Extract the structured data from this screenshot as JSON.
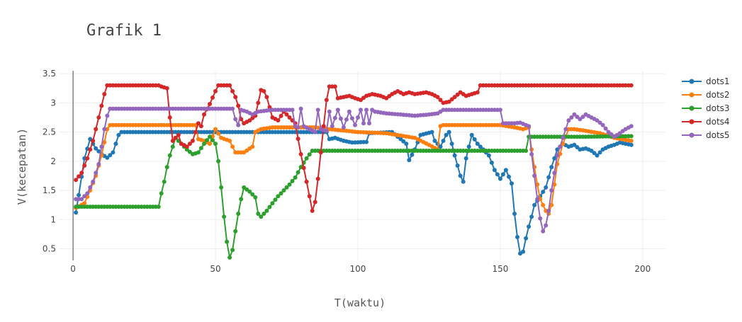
{
  "chart_data": {
    "type": "line",
    "title": "Grafik 1",
    "xlabel": "T(waktu)",
    "ylabel": "V(kecepatan)",
    "xlim": [
      -5,
      208
    ],
    "ylim": [
      0.3,
      3.55
    ],
    "xticks": [
      0,
      50,
      100,
      150,
      200
    ],
    "yticks": [
      0.5,
      1,
      1.5,
      2,
      2.5,
      3,
      3.5
    ],
    "ytick_labels": [
      "0.5",
      "1",
      "1.5",
      "2",
      "2.5",
      "3",
      "3.5"
    ],
    "grid": true,
    "legend_position": "top-right",
    "series": [
      {
        "name": "dots1",
        "color": "#1f77b4",
        "points": [
          [
            1,
            1.12
          ],
          [
            2,
            1.42
          ],
          [
            4,
            2.05
          ],
          [
            6,
            2.38
          ],
          [
            8,
            2.22
          ],
          [
            10,
            2.12
          ],
          [
            12,
            2.06
          ],
          [
            14,
            2.15
          ],
          [
            16,
            2.45
          ],
          [
            17,
            2.5
          ],
          [
            30,
            2.5
          ],
          [
            60,
            2.5
          ],
          [
            89,
            2.5
          ],
          [
            90,
            2.38
          ],
          [
            92,
            2.4
          ],
          [
            95,
            2.35
          ],
          [
            98,
            2.32
          ],
          [
            103,
            2.33
          ],
          [
            104,
            2.48
          ],
          [
            112,
            2.5
          ],
          [
            117,
            2.3
          ],
          [
            118,
            2.02
          ],
          [
            120,
            2.2
          ],
          [
            122,
            2.45
          ],
          [
            126,
            2.5
          ],
          [
            127,
            2.35
          ],
          [
            129,
            2.25
          ],
          [
            131,
            2.45
          ],
          [
            132,
            2.5
          ],
          [
            134,
            2.1
          ],
          [
            136,
            1.75
          ],
          [
            137,
            1.65
          ],
          [
            138,
            2.05
          ],
          [
            140,
            2.45
          ],
          [
            142,
            2.3
          ],
          [
            144,
            2.2
          ],
          [
            146,
            2.1
          ],
          [
            148,
            1.85
          ],
          [
            150,
            1.7
          ],
          [
            152,
            1.85
          ],
          [
            154,
            1.62
          ],
          [
            155,
            1.1
          ],
          [
            156,
            0.7
          ],
          [
            157,
            0.42
          ],
          [
            158,
            0.45
          ],
          [
            159,
            0.68
          ],
          [
            160,
            0.88
          ],
          [
            161,
            1.05
          ],
          [
            162,
            1.25
          ],
          [
            164,
            1.4
          ],
          [
            166,
            1.55
          ],
          [
            168,
            1.9
          ],
          [
            170,
            2.2
          ],
          [
            172,
            2.3
          ],
          [
            174,
            2.25
          ],
          [
            176,
            2.28
          ],
          [
            178,
            2.2
          ],
          [
            180,
            2.22
          ],
          [
            182,
            2.18
          ],
          [
            184,
            2.1
          ],
          [
            186,
            2.2
          ],
          [
            188,
            2.25
          ],
          [
            190,
            2.28
          ],
          [
            192,
            2.32
          ],
          [
            194,
            2.3
          ],
          [
            196,
            2.28
          ]
        ]
      },
      {
        "name": "dots2",
        "color": "#ff7f0e",
        "points": [
          [
            1,
            1.2
          ],
          [
            4,
            1.28
          ],
          [
            6,
            1.5
          ],
          [
            8,
            1.75
          ],
          [
            10,
            2.1
          ],
          [
            12,
            2.55
          ],
          [
            13,
            2.62
          ],
          [
            20,
            2.62
          ],
          [
            30,
            2.62
          ],
          [
            43,
            2.62
          ],
          [
            44,
            2.38
          ],
          [
            46,
            2.35
          ],
          [
            48,
            2.3
          ],
          [
            50,
            2.55
          ],
          [
            52,
            2.4
          ],
          [
            55,
            2.35
          ],
          [
            56,
            2.25
          ],
          [
            57,
            2.15
          ],
          [
            60,
            2.15
          ],
          [
            63,
            2.25
          ],
          [
            64,
            2.5
          ],
          [
            66,
            2.55
          ],
          [
            70,
            2.58
          ],
          [
            80,
            2.58
          ],
          [
            85,
            2.58
          ],
          [
            90,
            2.55
          ],
          [
            100,
            2.5
          ],
          [
            110,
            2.48
          ],
          [
            120,
            2.4
          ],
          [
            125,
            2.28
          ],
          [
            128,
            2.2
          ],
          [
            129,
            2.6
          ],
          [
            130,
            2.62
          ],
          [
            150,
            2.62
          ],
          [
            155,
            2.58
          ],
          [
            158,
            2.55
          ],
          [
            160,
            2.58
          ],
          [
            161,
            2.2
          ],
          [
            162,
            1.9
          ],
          [
            163,
            1.6
          ],
          [
            164,
            1.35
          ],
          [
            166,
            1.15
          ],
          [
            167,
            1.1
          ],
          [
            168,
            1.25
          ],
          [
            169,
            1.6
          ],
          [
            170,
            1.95
          ],
          [
            172,
            2.3
          ],
          [
            174,
            2.55
          ],
          [
            176,
            2.55
          ],
          [
            180,
            2.52
          ],
          [
            185,
            2.48
          ],
          [
            190,
            2.4
          ],
          [
            196,
            2.35
          ]
        ]
      },
      {
        "name": "dots3",
        "color": "#2ca02c",
        "points": [
          [
            1,
            1.22
          ],
          [
            10,
            1.22
          ],
          [
            20,
            1.22
          ],
          [
            30,
            1.22
          ],
          [
            31,
            1.45
          ],
          [
            32,
            1.65
          ],
          [
            33,
            1.9
          ],
          [
            34,
            2.1
          ],
          [
            36,
            2.4
          ],
          [
            38,
            2.3
          ],
          [
            40,
            2.2
          ],
          [
            42,
            2.12
          ],
          [
            44,
            2.15
          ],
          [
            46,
            2.3
          ],
          [
            48,
            2.42
          ],
          [
            50,
            2.3
          ],
          [
            51,
            2.0
          ],
          [
            52,
            1.55
          ],
          [
            53,
            1.05
          ],
          [
            54,
            0.62
          ],
          [
            55,
            0.35
          ],
          [
            56,
            0.48
          ],
          [
            57,
            0.8
          ],
          [
            58,
            1.1
          ],
          [
            59,
            1.35
          ],
          [
            60,
            1.55
          ],
          [
            62,
            1.48
          ],
          [
            64,
            1.38
          ],
          [
            65,
            1.1
          ],
          [
            66,
            1.05
          ],
          [
            68,
            1.15
          ],
          [
            70,
            1.28
          ],
          [
            72,
            1.4
          ],
          [
            74,
            1.5
          ],
          [
            76,
            1.6
          ],
          [
            78,
            1.72
          ],
          [
            80,
            1.9
          ],
          [
            82,
            2.05
          ],
          [
            84,
            2.18
          ],
          [
            90,
            2.18
          ],
          [
            100,
            2.18
          ],
          [
            120,
            2.18
          ],
          [
            140,
            2.18
          ],
          [
            159,
            2.18
          ],
          [
            160,
            2.42
          ],
          [
            170,
            2.42
          ],
          [
            180,
            2.42
          ],
          [
            196,
            2.43
          ]
        ]
      },
      {
        "name": "dots4",
        "color": "#d62728",
        "points": [
          [
            1,
            1.68
          ],
          [
            3,
            1.8
          ],
          [
            5,
            2.05
          ],
          [
            7,
            2.35
          ],
          [
            9,
            2.75
          ],
          [
            11,
            3.15
          ],
          [
            12,
            3.3
          ],
          [
            20,
            3.3
          ],
          [
            30,
            3.3
          ],
          [
            31,
            3.28
          ],
          [
            33,
            3.25
          ],
          [
            34,
            2.75
          ],
          [
            35,
            2.35
          ],
          [
            37,
            2.45
          ],
          [
            38,
            2.3
          ],
          [
            40,
            2.25
          ],
          [
            42,
            2.35
          ],
          [
            44,
            2.65
          ],
          [
            45,
            2.6
          ],
          [
            46,
            2.8
          ],
          [
            48,
            2.98
          ],
          [
            50,
            3.2
          ],
          [
            51,
            3.3
          ],
          [
            55,
            3.3
          ],
          [
            56,
            3.2
          ],
          [
            57,
            3.1
          ],
          [
            58,
            2.95
          ],
          [
            59,
            2.72
          ],
          [
            60,
            2.65
          ],
          [
            62,
            2.7
          ],
          [
            64,
            2.78
          ],
          [
            66,
            3.22
          ],
          [
            67,
            3.2
          ],
          [
            68,
            3.1
          ],
          [
            70,
            2.75
          ],
          [
            72,
            2.7
          ],
          [
            74,
            2.85
          ],
          [
            76,
            2.75
          ],
          [
            78,
            2.65
          ],
          [
            80,
            2.12
          ],
          [
            82,
            1.65
          ],
          [
            83,
            1.4
          ],
          [
            84,
            1.15
          ],
          [
            85,
            1.3
          ],
          [
            86,
            1.7
          ],
          [
            87,
            2.15
          ],
          [
            88,
            2.6
          ],
          [
            89,
            3.05
          ],
          [
            90,
            3.28
          ],
          [
            92,
            3.28
          ],
          [
            93,
            3.08
          ],
          [
            95,
            3.1
          ],
          [
            97,
            3.12
          ],
          [
            99,
            3.08
          ],
          [
            101,
            3.05
          ],
          [
            103,
            3.12
          ],
          [
            105,
            3.15
          ],
          [
            108,
            3.12
          ],
          [
            110,
            3.08
          ],
          [
            112,
            3.15
          ],
          [
            114,
            3.2
          ],
          [
            116,
            3.15
          ],
          [
            118,
            3.18
          ],
          [
            120,
            3.15
          ],
          [
            124,
            3.18
          ],
          [
            126,
            3.15
          ],
          [
            128,
            3.1
          ],
          [
            130,
            3.0
          ],
          [
            132,
            3.02
          ],
          [
            134,
            3.1
          ],
          [
            136,
            3.18
          ],
          [
            138,
            3.12
          ],
          [
            140,
            3.15
          ],
          [
            142,
            3.18
          ],
          [
            143,
            3.3
          ],
          [
            150,
            3.3
          ],
          [
            160,
            3.3
          ],
          [
            170,
            3.3
          ],
          [
            180,
            3.3
          ],
          [
            196,
            3.3
          ]
        ]
      },
      {
        "name": "dots5",
        "color": "#9467bd",
        "points": [
          [
            1,
            1.35
          ],
          [
            3,
            1.35
          ],
          [
            5,
            1.45
          ],
          [
            7,
            1.65
          ],
          [
            9,
            1.95
          ],
          [
            11,
            2.55
          ],
          [
            12,
            2.78
          ],
          [
            13,
            2.9
          ],
          [
            20,
            2.9
          ],
          [
            30,
            2.9
          ],
          [
            40,
            2.9
          ],
          [
            50,
            2.9
          ],
          [
            56,
            2.9
          ],
          [
            57,
            2.72
          ],
          [
            58,
            2.62
          ],
          [
            59,
            2.88
          ],
          [
            61,
            2.85
          ],
          [
            63,
            2.8
          ],
          [
            65,
            2.85
          ],
          [
            70,
            2.88
          ],
          [
            77,
            2.88
          ],
          [
            78,
            2.6
          ],
          [
            79,
            2.58
          ],
          [
            80,
            2.9
          ],
          [
            81,
            2.6
          ],
          [
            83,
            2.55
          ],
          [
            85,
            2.5
          ],
          [
            86,
            2.88
          ],
          [
            87,
            2.55
          ],
          [
            89,
            2.52
          ],
          [
            90,
            2.85
          ],
          [
            91,
            2.6
          ],
          [
            93,
            2.88
          ],
          [
            95,
            2.58
          ],
          [
            97,
            2.85
          ],
          [
            99,
            2.62
          ],
          [
            101,
            2.88
          ],
          [
            102,
            2.65
          ],
          [
            103,
            2.88
          ],
          [
            104,
            2.65
          ],
          [
            105,
            2.88
          ],
          [
            106,
            2.85
          ],
          [
            110,
            2.82
          ],
          [
            115,
            2.8
          ],
          [
            120,
            2.78
          ],
          [
            125,
            2.8
          ],
          [
            128,
            2.82
          ],
          [
            130,
            2.88
          ],
          [
            140,
            2.88
          ],
          [
            150,
            2.88
          ],
          [
            151,
            2.65
          ],
          [
            155,
            2.65
          ],
          [
            157,
            2.66
          ],
          [
            160,
            2.6
          ],
          [
            161,
            2.12
          ],
          [
            162,
            1.75
          ],
          [
            163,
            1.35
          ],
          [
            164,
            1.02
          ],
          [
            165,
            0.8
          ],
          [
            166,
            0.9
          ],
          [
            167,
            1.15
          ],
          [
            168,
            1.5
          ],
          [
            169,
            1.8
          ],
          [
            170,
            2.1
          ],
          [
            172,
            2.4
          ],
          [
            174,
            2.7
          ],
          [
            176,
            2.8
          ],
          [
            178,
            2.72
          ],
          [
            180,
            2.8
          ],
          [
            182,
            2.75
          ],
          [
            184,
            2.7
          ],
          [
            186,
            2.62
          ],
          [
            188,
            2.5
          ],
          [
            190,
            2.42
          ],
          [
            192,
            2.48
          ],
          [
            194,
            2.55
          ],
          [
            196,
            2.6
          ]
        ]
      }
    ]
  }
}
